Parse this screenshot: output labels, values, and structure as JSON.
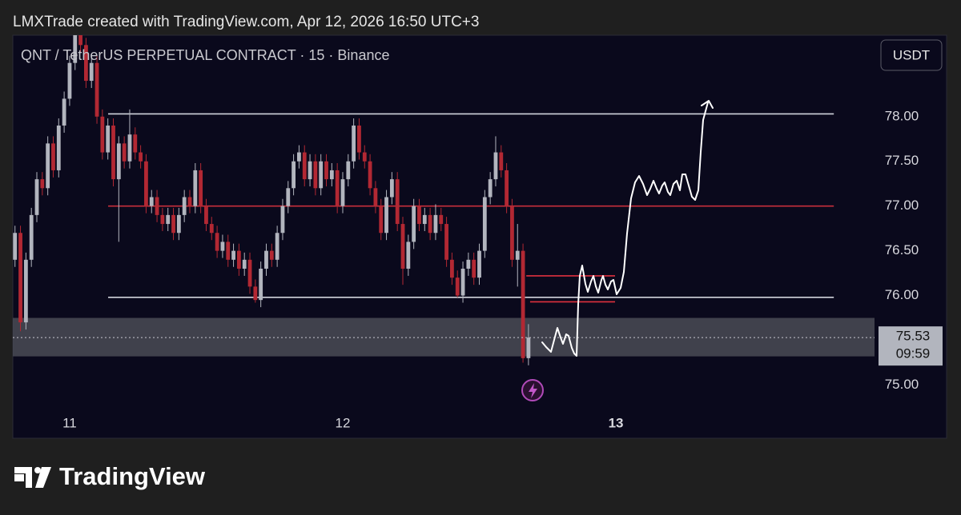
{
  "header": "LMXTrade created with TradingView.com, Apr 12, 2026 16:50 UTC+3",
  "brand": "TradingView",
  "chart_data": {
    "type": "candlestick",
    "title": "QNT / TetherUS PERPETUAL CONTRACT · 15 · Binance",
    "currency_button": "USDT",
    "up_color": "#b2b5be",
    "down_color": "#b22833",
    "x": [
      10.8,
      10.82,
      10.84,
      10.86,
      10.88,
      10.9,
      10.92,
      10.94,
      10.96,
      10.98,
      11,
      11.02,
      11.04,
      11.06,
      11.08,
      11.1,
      11.12,
      11.14,
      11.16,
      11.18,
      11.2,
      11.22,
      11.24,
      11.26,
      11.28,
      11.3,
      11.32,
      11.34,
      11.36,
      11.38,
      11.4,
      11.42,
      11.44,
      11.46,
      11.48,
      11.5,
      11.52,
      11.54,
      11.56,
      11.58,
      11.6,
      11.62,
      11.64,
      11.66,
      11.68,
      11.7,
      11.72,
      11.74,
      11.76,
      11.78,
      11.8,
      11.82,
      11.84,
      11.86,
      11.88,
      11.9,
      11.92,
      11.94,
      11.96,
      11.98,
      12,
      12.02,
      12.04,
      12.06,
      12.08,
      12.1,
      12.12,
      12.14,
      12.16,
      12.18,
      12.2,
      12.22,
      12.24,
      12.26,
      12.28,
      12.3,
      12.32,
      12.34,
      12.36,
      12.38,
      12.4,
      12.42,
      12.44,
      12.46,
      12.48,
      12.5,
      12.52,
      12.54,
      12.56,
      12.58,
      12.6,
      12.62,
      12.64,
      12.66,
      12.68
    ],
    "open": [
      76.4,
      76.7,
      75.7,
      76.4,
      76.9,
      77.3,
      77.2,
      77.7,
      77.4,
      77.9,
      78.2,
      78.6,
      79,
      78.8,
      78.4,
      78.6,
      78,
      77.6,
      77.9,
      77.3,
      77.7,
      77.5,
      77.8,
      77.6,
      77.5,
      77,
      77.1,
      76.9,
      76.8,
      76.9,
      76.7,
      76.9,
      77.1,
      77,
      77.4,
      77,
      76.8,
      76.7,
      76.5,
      76.6,
      76.4,
      76.5,
      76.3,
      76.4,
      76.1,
      75.95,
      76.3,
      76.5,
      76.4,
      76.7,
      77,
      77.2,
      77.5,
      77.6,
      77.3,
      77.5,
      77.2,
      77.5,
      77.3,
      77.4,
      77,
      77.3,
      77.5,
      77.9,
      77.6,
      77.5,
      77.2,
      77,
      76.7,
      77.1,
      77.3,
      76.8,
      76.3,
      76.6,
      77,
      76.8,
      76.9,
      76.7,
      76.9,
      76.8,
      76.4,
      76.2,
      76,
      76.3,
      76.4,
      76.2,
      76.5,
      77.1,
      77.3,
      77.6,
      77.4,
      77,
      76.4,
      76.5,
      75.3
    ],
    "high": [
      76.78,
      76.78,
      76.48,
      76.98,
      77.38,
      77.38,
      77.78,
      77.78,
      77.98,
      78.28,
      78.68,
      79.08,
      79.08,
      78.88,
      78.68,
      78.68,
      78.08,
      77.98,
      77.98,
      77.78,
      77.78,
      78.08,
      77.88,
      77.68,
      77.58,
      77.18,
      77.18,
      76.98,
      76.98,
      76.98,
      76.98,
      77.18,
      77.18,
      77.48,
      77.48,
      77.08,
      76.88,
      76.78,
      76.68,
      76.68,
      76.58,
      76.58,
      76.48,
      76.48,
      76.18,
      76.38,
      76.58,
      76.58,
      76.78,
      77.08,
      77.28,
      77.58,
      77.68,
      77.68,
      77.58,
      77.58,
      77.58,
      77.58,
      77.48,
      77.48,
      77.38,
      77.58,
      77.98,
      77.98,
      77.68,
      77.58,
      77.28,
      77.08,
      77.18,
      77.38,
      77.38,
      76.88,
      76.68,
      77.08,
      77.08,
      76.98,
      76.98,
      77.02,
      76.98,
      76.88,
      76.48,
      76.28,
      76.38,
      76.48,
      76.48,
      76.58,
      77.18,
      77.38,
      77.78,
      77.68,
      77.48,
      77.08,
      76.8,
      76.58,
      75.68
    ],
    "low": [
      76.32,
      75.6,
      75.62,
      76.32,
      76.82,
      77.12,
      77.12,
      77.32,
      77.32,
      77.82,
      78.12,
      78.52,
      78.72,
      78.32,
      78.32,
      77.92,
      77.52,
      77.52,
      77.22,
      76.6,
      77.42,
      77.42,
      77.52,
      77.42,
      76.92,
      76.92,
      76.82,
      76.72,
      76.72,
      76.62,
      76.62,
      76.82,
      76.92,
      76.92,
      76.92,
      76.72,
      76.62,
      76.42,
      76.42,
      76.32,
      76.32,
      76.22,
      76.22,
      76.02,
      75.92,
      75.87,
      76.22,
      76.32,
      76.32,
      76.62,
      76.92,
      77.12,
      77.42,
      77.22,
      77.22,
      77.12,
      77.12,
      77.22,
      77.22,
      76.92,
      76.92,
      77.22,
      77.42,
      77.52,
      77.42,
      77.12,
      76.92,
      76.62,
      76.62,
      77.02,
      76.72,
      76.12,
      76.22,
      76.52,
      76.72,
      76.72,
      76.62,
      76.62,
      76.72,
      76.32,
      76.12,
      75.98,
      75.92,
      76.22,
      76.12,
      76.12,
      76.42,
      77.02,
      77.22,
      77.32,
      76.92,
      76.32,
      76.1,
      75.25,
      75.22
    ],
    "close": [
      76.7,
      75.7,
      76.4,
      76.9,
      77.3,
      77.2,
      77.7,
      77.4,
      77.9,
      78.2,
      78.6,
      79,
      78.8,
      78.4,
      78.6,
      78,
      77.6,
      77.9,
      77.3,
      77.7,
      77.5,
      77.8,
      77.6,
      77.5,
      77,
      77.1,
      76.9,
      76.8,
      76.9,
      76.7,
      76.9,
      77.1,
      77,
      77.4,
      77,
      76.8,
      76.7,
      76.5,
      76.6,
      76.4,
      76.5,
      76.3,
      76.4,
      76.1,
      75.95,
      76.3,
      76.5,
      76.4,
      76.7,
      77,
      77.2,
      77.5,
      77.6,
      77.3,
      77.5,
      77.2,
      77.5,
      77.3,
      77.4,
      77,
      77.3,
      77.5,
      77.9,
      77.6,
      77.5,
      77.2,
      77,
      76.7,
      77.1,
      77.3,
      76.8,
      76.3,
      76.6,
      77,
      76.8,
      76.9,
      76.7,
      76.9,
      76.8,
      76.4,
      76.2,
      76,
      76.3,
      76.4,
      76.2,
      76.5,
      77.1,
      77.3,
      77.6,
      77.4,
      77,
      76.4,
      76.5,
      75.3,
      75.53
    ],
    "levels": [
      {
        "value": 78.03,
        "color": "#d1d4dc",
        "x": [
          11.141,
          13.798
        ]
      },
      {
        "value": 77.0,
        "color": "#c62f3b",
        "x": [
          11.141,
          13.798
        ]
      },
      {
        "value": 75.98,
        "color": "#d1d4dc",
        "x": [
          11.141,
          13.798
        ]
      },
      {
        "value": 76.22,
        "color": "#e0313e",
        "x": [
          12.672,
          12.997
        ]
      },
      {
        "value": 75.93,
        "color": "#e0313e",
        "x": [
          12.686,
          12.997
        ]
      }
    ],
    "zone": {
      "range": [
        75.32,
        75.75
      ],
      "color": "#4a4b55"
    },
    "last_price": 75.53,
    "countdown": "09:59",
    "xlim": [
      10.792,
      13.947
    ],
    "xticks": [
      11,
      12,
      13
    ],
    "ylim": [
      74.7,
      78.91
    ],
    "yticks": [
      {
        "value": 75,
        "label": "75.00"
      },
      {
        "value": 76,
        "label": "76.00"
      },
      {
        "value": 76.5,
        "label": "76.50"
      },
      {
        "value": 77,
        "label": "77.00"
      },
      {
        "value": 77.5,
        "label": "77.50"
      },
      {
        "value": 78,
        "label": "78.00"
      }
    ]
  }
}
